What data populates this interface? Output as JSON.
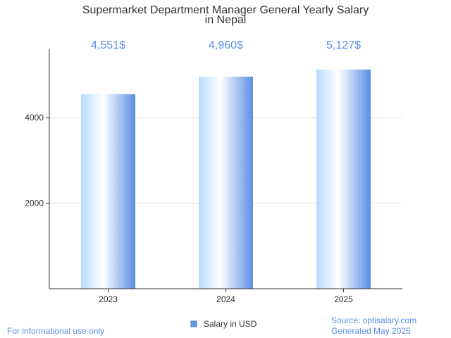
{
  "chart_data": {
    "type": "bar",
    "title_lines": [
      "Supermarket Department Manager General Yearly Salary",
      "in Nepal"
    ],
    "categories": [
      "2023",
      "2024",
      "2025"
    ],
    "series": [
      {
        "name": "Salary in USD",
        "values": [
          4551,
          4960,
          5127
        ],
        "labels": [
          "4,551$",
          "4,960$",
          "5,127$"
        ]
      }
    ],
    "y_ticks": [
      2000,
      4000
    ],
    "ylim": [
      0,
      5600
    ],
    "grid": true,
    "legend_position": "bottom-center"
  },
  "colors": {
    "bar_light": "#eaf5ff",
    "bar_mid": "#b7dcff",
    "bar_dark": "#5b8ee6",
    "label": "#5b8ee6",
    "axis": "#333333",
    "grid": "#e2e2e2",
    "legend_swatch": "#6a9be0"
  },
  "footer": {
    "left": "For informational use only",
    "right_line1": "Source: optisalary.com",
    "right_line2": "Generated May 2025"
  }
}
